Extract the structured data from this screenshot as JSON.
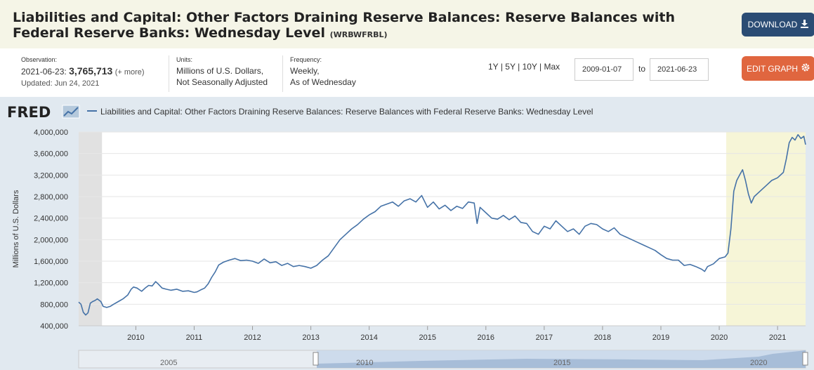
{
  "header": {
    "title": "Liabilities and Capital: Other Factors Draining Reserve Balances: Reserve Balances with Federal Reserve Banks: Wednesday Level",
    "series_id": "(WRBWFRBL)",
    "download_label": "DOWNLOAD",
    "edit_label": "EDIT GRAPH"
  },
  "meta": {
    "observation_label": "Observation:",
    "observation_date": "2021-06-23:",
    "observation_value": "3,765,713",
    "observation_more": "(+ more)",
    "updated": "Updated: Jun 24, 2021",
    "units_label": "Units:",
    "units_line1": "Millions of U.S. Dollars,",
    "units_line2": "Not Seasonally Adjusted",
    "frequency_label": "Frequency:",
    "frequency_line1": "Weekly,",
    "frequency_line2": "As of Wednesday"
  },
  "controls": {
    "range_1y": "1Y",
    "range_5y": "5Y",
    "range_10y": "10Y",
    "range_max": "Max",
    "range_sep": "|",
    "start_date": "2009-01-07",
    "to_label": "to",
    "end_date": "2021-06-23"
  },
  "icons": {
    "download": "download-icon",
    "edit": "gear-icon",
    "logo": "fred-logo"
  },
  "colors": {
    "line": "#4572a7",
    "recession": "#e1e1e1",
    "highlight": "#f6f5d7",
    "download_btn": "#2b4c74",
    "edit_btn": "#e0663f"
  },
  "chart_data": {
    "type": "line",
    "logo_text": "FRED",
    "legend": "Liabilities and Capital: Other Factors Draining Reserve Balances: Reserve Balances with Federal Reserve Banks: Wednesday Level",
    "ylabel": "Millions of U.S. Dollars",
    "ylim": [
      400000,
      4000000
    ],
    "yticks": [
      400000,
      800000,
      1200000,
      1600000,
      2000000,
      2400000,
      2800000,
      3200000,
      3600000,
      4000000
    ],
    "ytick_labels": [
      "400,000",
      "800,000",
      "1,200,000",
      "1,600,000",
      "2,000,000",
      "2,400,000",
      "2,800,000",
      "3,200,000",
      "3,600,000",
      "4,000,000"
    ],
    "xlim": [
      2009.02,
      2021.48
    ],
    "xtick_labels": [
      "2010",
      "2011",
      "2012",
      "2013",
      "2014",
      "2015",
      "2016",
      "2017",
      "2018",
      "2019",
      "2020",
      "2021"
    ],
    "shaded_recession": [
      2009.02,
      2009.42
    ],
    "shaded_highlight": [
      2020.12,
      2021.48
    ],
    "navigator_labels": [
      "2005",
      "2010",
      "2015",
      "2020"
    ],
    "grid": true,
    "series": [
      {
        "values": [
          [
            2009.02,
            840000
          ],
          [
            2009.06,
            800000
          ],
          [
            2009.1,
            650000
          ],
          [
            2009.14,
            600000
          ],
          [
            2009.18,
            640000
          ],
          [
            2009.22,
            820000
          ],
          [
            2009.26,
            850000
          ],
          [
            2009.3,
            870000
          ],
          [
            2009.34,
            900000
          ],
          [
            2009.4,
            850000
          ],
          [
            2009.44,
            760000
          ],
          [
            2009.5,
            740000
          ],
          [
            2009.56,
            760000
          ],
          [
            2009.62,
            800000
          ],
          [
            2009.7,
            850000
          ],
          [
            2009.78,
            900000
          ],
          [
            2009.86,
            970000
          ],
          [
            2009.92,
            1080000
          ],
          [
            2009.96,
            1120000
          ],
          [
            2010.02,
            1100000
          ],
          [
            2010.1,
            1040000
          ],
          [
            2010.16,
            1100000
          ],
          [
            2010.22,
            1150000
          ],
          [
            2010.28,
            1140000
          ],
          [
            2010.34,
            1220000
          ],
          [
            2010.38,
            1180000
          ],
          [
            2010.45,
            1100000
          ],
          [
            2010.52,
            1080000
          ],
          [
            2010.6,
            1060000
          ],
          [
            2010.7,
            1080000
          ],
          [
            2010.8,
            1040000
          ],
          [
            2010.9,
            1050000
          ],
          [
            2011.0,
            1020000
          ],
          [
            2011.05,
            1030000
          ],
          [
            2011.12,
            1070000
          ],
          [
            2011.18,
            1100000
          ],
          [
            2011.24,
            1180000
          ],
          [
            2011.3,
            1300000
          ],
          [
            2011.36,
            1400000
          ],
          [
            2011.42,
            1530000
          ],
          [
            2011.5,
            1580000
          ],
          [
            2011.6,
            1620000
          ],
          [
            2011.7,
            1650000
          ],
          [
            2011.8,
            1610000
          ],
          [
            2011.9,
            1620000
          ],
          [
            2012.0,
            1600000
          ],
          [
            2012.1,
            1560000
          ],
          [
            2012.2,
            1640000
          ],
          [
            2012.3,
            1570000
          ],
          [
            2012.4,
            1590000
          ],
          [
            2012.5,
            1520000
          ],
          [
            2012.6,
            1560000
          ],
          [
            2012.7,
            1500000
          ],
          [
            2012.8,
            1520000
          ],
          [
            2012.9,
            1500000
          ],
          [
            2013.0,
            1470000
          ],
          [
            2013.1,
            1520000
          ],
          [
            2013.2,
            1620000
          ],
          [
            2013.3,
            1700000
          ],
          [
            2013.4,
            1850000
          ],
          [
            2013.5,
            2000000
          ],
          [
            2013.6,
            2100000
          ],
          [
            2013.7,
            2200000
          ],
          [
            2013.8,
            2280000
          ],
          [
            2013.9,
            2380000
          ],
          [
            2014.0,
            2460000
          ],
          [
            2014.1,
            2520000
          ],
          [
            2014.2,
            2620000
          ],
          [
            2014.3,
            2660000
          ],
          [
            2014.4,
            2700000
          ],
          [
            2014.5,
            2620000
          ],
          [
            2014.6,
            2720000
          ],
          [
            2014.7,
            2760000
          ],
          [
            2014.8,
            2700000
          ],
          [
            2014.9,
            2820000
          ],
          [
            2015.0,
            2600000
          ],
          [
            2015.1,
            2700000
          ],
          [
            2015.2,
            2570000
          ],
          [
            2015.3,
            2640000
          ],
          [
            2015.4,
            2540000
          ],
          [
            2015.5,
            2620000
          ],
          [
            2015.6,
            2580000
          ],
          [
            2015.7,
            2700000
          ],
          [
            2015.8,
            2680000
          ],
          [
            2015.85,
            2300000
          ],
          [
            2015.9,
            2600000
          ],
          [
            2016.0,
            2500000
          ],
          [
            2016.1,
            2400000
          ],
          [
            2016.2,
            2380000
          ],
          [
            2016.3,
            2450000
          ],
          [
            2016.4,
            2370000
          ],
          [
            2016.5,
            2440000
          ],
          [
            2016.6,
            2320000
          ],
          [
            2016.7,
            2300000
          ],
          [
            2016.8,
            2150000
          ],
          [
            2016.9,
            2100000
          ],
          [
            2017.0,
            2250000
          ],
          [
            2017.1,
            2200000
          ],
          [
            2017.2,
            2350000
          ],
          [
            2017.3,
            2250000
          ],
          [
            2017.4,
            2150000
          ],
          [
            2017.5,
            2200000
          ],
          [
            2017.6,
            2100000
          ],
          [
            2017.7,
            2250000
          ],
          [
            2017.8,
            2300000
          ],
          [
            2017.9,
            2280000
          ],
          [
            2018.0,
            2200000
          ],
          [
            2018.1,
            2150000
          ],
          [
            2018.2,
            2220000
          ],
          [
            2018.3,
            2100000
          ],
          [
            2018.4,
            2050000
          ],
          [
            2018.5,
            2000000
          ],
          [
            2018.6,
            1950000
          ],
          [
            2018.7,
            1900000
          ],
          [
            2018.8,
            1850000
          ],
          [
            2018.9,
            1800000
          ],
          [
            2019.0,
            1720000
          ],
          [
            2019.1,
            1650000
          ],
          [
            2019.2,
            1620000
          ],
          [
            2019.3,
            1620000
          ],
          [
            2019.4,
            1520000
          ],
          [
            2019.5,
            1540000
          ],
          [
            2019.6,
            1500000
          ],
          [
            2019.7,
            1450000
          ],
          [
            2019.75,
            1410000
          ],
          [
            2019.8,
            1500000
          ],
          [
            2019.9,
            1550000
          ],
          [
            2020.0,
            1650000
          ],
          [
            2020.1,
            1680000
          ],
          [
            2020.15,
            1750000
          ],
          [
            2020.2,
            2200000
          ],
          [
            2020.25,
            2900000
          ],
          [
            2020.3,
            3100000
          ],
          [
            2020.35,
            3200000
          ],
          [
            2020.4,
            3300000
          ],
          [
            2020.45,
            3100000
          ],
          [
            2020.5,
            2850000
          ],
          [
            2020.55,
            2680000
          ],
          [
            2020.6,
            2800000
          ],
          [
            2020.7,
            2900000
          ],
          [
            2020.8,
            3000000
          ],
          [
            2020.9,
            3100000
          ],
          [
            2021.0,
            3150000
          ],
          [
            2021.1,
            3250000
          ],
          [
            2021.15,
            3500000
          ],
          [
            2021.2,
            3800000
          ],
          [
            2021.25,
            3900000
          ],
          [
            2021.3,
            3850000
          ],
          [
            2021.35,
            3950000
          ],
          [
            2021.4,
            3880000
          ],
          [
            2021.45,
            3920000
          ],
          [
            2021.48,
            3765713
          ]
        ]
      }
    ]
  }
}
